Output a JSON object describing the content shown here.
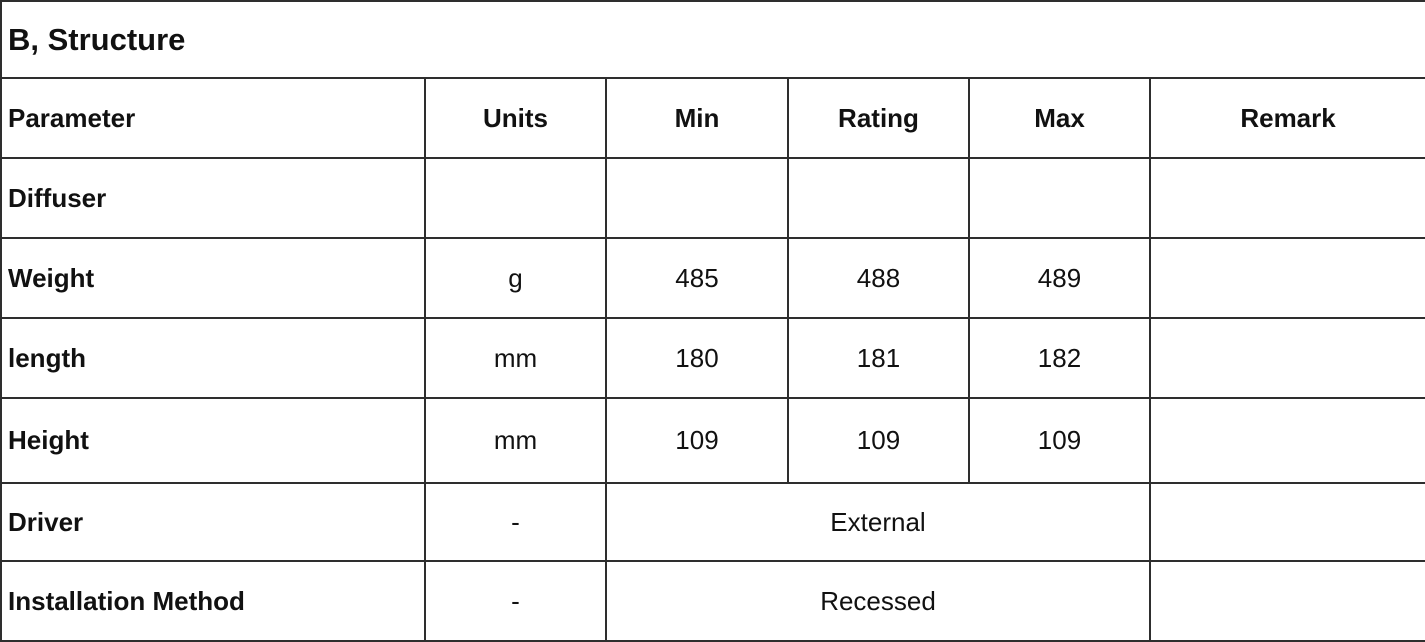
{
  "section_title": "B, Structure",
  "headers": [
    "Parameter",
    "Units",
    "Min",
    "Rating",
    "Max",
    "Remark"
  ],
  "rows": [
    {
      "parameter": "Diffuser",
      "units": "",
      "min": "",
      "rating": "",
      "max": "",
      "remark": ""
    },
    {
      "parameter": "Weight",
      "units": "g",
      "min": "485",
      "rating": "488",
      "max": "489",
      "remark": ""
    },
    {
      "parameter": "length",
      "units": "mm",
      "min": "180",
      "rating": "181",
      "max": "182",
      "remark": ""
    },
    {
      "parameter": "Height",
      "units": "mm",
      "min": "109",
      "rating": "109",
      "max": "109",
      "remark": ""
    }
  ],
  "merged_rows": [
    {
      "parameter": "Driver",
      "units": "-",
      "value": "External",
      "remark": ""
    },
    {
      "parameter": "Installation Method",
      "units": "-",
      "value": "Recessed",
      "remark": ""
    }
  ]
}
